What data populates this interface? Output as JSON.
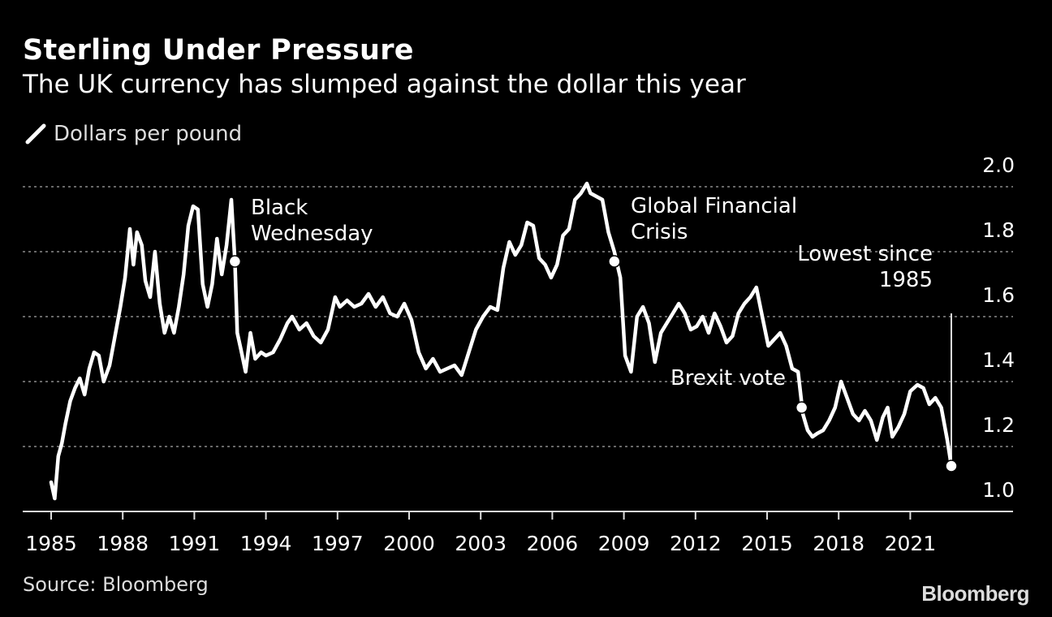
{
  "header": {
    "title": "Sterling Under Pressure",
    "subtitle": "The UK currency has slumped against the dollar this year",
    "legend_label": "Dollars per pound"
  },
  "footer": {
    "source": "Source: Bloomberg",
    "brand": "Bloomberg"
  },
  "colors": {
    "background": "#000000",
    "line": "#ffffff",
    "grid": "#8a8a8a"
  },
  "chart_data": {
    "type": "line",
    "title": "Sterling Under Pressure",
    "subtitle": "The UK currency has slumped against the dollar this year",
    "ylabel": "Dollars per pound",
    "xlim": [
      1984.8,
      2026.0
    ],
    "ylim": [
      1.0,
      2.0
    ],
    "x_ticks": [
      1985,
      1988,
      1991,
      1994,
      1997,
      2000,
      2003,
      2006,
      2009,
      2012,
      2015,
      2018,
      2021
    ],
    "y_ticks": [
      1.0,
      1.2,
      1.4,
      1.6,
      1.8,
      2.0
    ],
    "grid": "horizontal dotted",
    "legend_position": "top-left",
    "series": [
      {
        "name": "Dollars per pound",
        "points": [
          [
            1985.0,
            1.09
          ],
          [
            1985.15,
            1.04
          ],
          [
            1985.3,
            1.17
          ],
          [
            1985.45,
            1.21
          ],
          [
            1985.6,
            1.27
          ],
          [
            1985.8,
            1.34
          ],
          [
            1986.0,
            1.38
          ],
          [
            1986.2,
            1.41
          ],
          [
            1986.4,
            1.36
          ],
          [
            1986.6,
            1.44
          ],
          [
            1986.8,
            1.49
          ],
          [
            1987.0,
            1.48
          ],
          [
            1987.2,
            1.4
          ],
          [
            1987.45,
            1.45
          ],
          [
            1987.7,
            1.55
          ],
          [
            1987.9,
            1.63
          ],
          [
            1988.1,
            1.72
          ],
          [
            1988.3,
            1.87
          ],
          [
            1988.45,
            1.76
          ],
          [
            1988.6,
            1.86
          ],
          [
            1988.8,
            1.82
          ],
          [
            1988.95,
            1.71
          ],
          [
            1989.15,
            1.66
          ],
          [
            1989.35,
            1.8
          ],
          [
            1989.55,
            1.64
          ],
          [
            1989.75,
            1.55
          ],
          [
            1989.95,
            1.6
          ],
          [
            1990.15,
            1.55
          ],
          [
            1990.35,
            1.63
          ],
          [
            1990.55,
            1.73
          ],
          [
            1990.75,
            1.88
          ],
          [
            1990.95,
            1.94
          ],
          [
            1991.15,
            1.93
          ],
          [
            1991.35,
            1.7
          ],
          [
            1991.55,
            1.63
          ],
          [
            1991.75,
            1.7
          ],
          [
            1991.95,
            1.84
          ],
          [
            1992.15,
            1.73
          ],
          [
            1992.35,
            1.82
          ],
          [
            1992.55,
            1.96
          ],
          [
            1992.7,
            1.77
          ],
          [
            1992.8,
            1.55
          ],
          [
            1992.95,
            1.5
          ],
          [
            1993.15,
            1.43
          ],
          [
            1993.35,
            1.55
          ],
          [
            1993.55,
            1.47
          ],
          [
            1993.8,
            1.49
          ],
          [
            1994.0,
            1.48
          ],
          [
            1994.3,
            1.49
          ],
          [
            1994.6,
            1.53
          ],
          [
            1994.9,
            1.58
          ],
          [
            1995.1,
            1.6
          ],
          [
            1995.4,
            1.56
          ],
          [
            1995.7,
            1.58
          ],
          [
            1996.0,
            1.54
          ],
          [
            1996.3,
            1.52
          ],
          [
            1996.6,
            1.56
          ],
          [
            1996.9,
            1.66
          ],
          [
            1997.1,
            1.63
          ],
          [
            1997.4,
            1.65
          ],
          [
            1997.7,
            1.63
          ],
          [
            1998.0,
            1.64
          ],
          [
            1998.3,
            1.67
          ],
          [
            1998.6,
            1.63
          ],
          [
            1998.9,
            1.66
          ],
          [
            1999.2,
            1.61
          ],
          [
            1999.5,
            1.6
          ],
          [
            1999.8,
            1.64
          ],
          [
            2000.1,
            1.59
          ],
          [
            2000.4,
            1.49
          ],
          [
            2000.7,
            1.44
          ],
          [
            2001.0,
            1.47
          ],
          [
            2001.3,
            1.43
          ],
          [
            2001.6,
            1.44
          ],
          [
            2001.9,
            1.45
          ],
          [
            2002.2,
            1.42
          ],
          [
            2002.5,
            1.49
          ],
          [
            2002.8,
            1.56
          ],
          [
            2003.1,
            1.6
          ],
          [
            2003.4,
            1.63
          ],
          [
            2003.7,
            1.62
          ],
          [
            2003.95,
            1.75
          ],
          [
            2004.2,
            1.83
          ],
          [
            2004.45,
            1.79
          ],
          [
            2004.7,
            1.82
          ],
          [
            2004.95,
            1.89
          ],
          [
            2005.2,
            1.88
          ],
          [
            2005.45,
            1.78
          ],
          [
            2005.7,
            1.76
          ],
          [
            2005.95,
            1.72
          ],
          [
            2006.2,
            1.76
          ],
          [
            2006.45,
            1.85
          ],
          [
            2006.7,
            1.87
          ],
          [
            2006.95,
            1.96
          ],
          [
            2007.2,
            1.98
          ],
          [
            2007.45,
            2.01
          ],
          [
            2007.6,
            1.98
          ],
          [
            2007.85,
            1.97
          ],
          [
            2008.1,
            1.96
          ],
          [
            2008.35,
            1.86
          ],
          [
            2008.6,
            1.8
          ],
          [
            2008.85,
            1.72
          ],
          [
            2009.05,
            1.48
          ],
          [
            2009.3,
            1.43
          ],
          [
            2009.55,
            1.6
          ],
          [
            2009.8,
            1.63
          ],
          [
            2010.05,
            1.58
          ],
          [
            2010.3,
            1.46
          ],
          [
            2010.55,
            1.55
          ],
          [
            2010.8,
            1.58
          ],
          [
            2011.05,
            1.61
          ],
          [
            2011.3,
            1.64
          ],
          [
            2011.55,
            1.61
          ],
          [
            2011.8,
            1.56
          ],
          [
            2012.05,
            1.57
          ],
          [
            2012.3,
            1.6
          ],
          [
            2012.55,
            1.55
          ],
          [
            2012.8,
            1.61
          ],
          [
            2013.05,
            1.57
          ],
          [
            2013.3,
            1.52
          ],
          [
            2013.55,
            1.54
          ],
          [
            2013.8,
            1.61
          ],
          [
            2014.05,
            1.64
          ],
          [
            2014.3,
            1.66
          ],
          [
            2014.55,
            1.69
          ],
          [
            2014.8,
            1.6
          ],
          [
            2015.05,
            1.51
          ],
          [
            2015.3,
            1.53
          ],
          [
            2015.55,
            1.55
          ],
          [
            2015.8,
            1.51
          ],
          [
            2016.05,
            1.44
          ],
          [
            2016.3,
            1.43
          ],
          [
            2016.5,
            1.3
          ],
          [
            2016.7,
            1.25
          ],
          [
            2016.9,
            1.23
          ],
          [
            2017.1,
            1.24
          ],
          [
            2017.35,
            1.25
          ],
          [
            2017.6,
            1.28
          ],
          [
            2017.85,
            1.32
          ],
          [
            2018.1,
            1.4
          ],
          [
            2018.35,
            1.35
          ],
          [
            2018.6,
            1.3
          ],
          [
            2018.85,
            1.28
          ],
          [
            2019.1,
            1.31
          ],
          [
            2019.35,
            1.28
          ],
          [
            2019.6,
            1.22
          ],
          [
            2019.85,
            1.29
          ],
          [
            2020.05,
            1.32
          ],
          [
            2020.25,
            1.23
          ],
          [
            2020.5,
            1.26
          ],
          [
            2020.75,
            1.3
          ],
          [
            2021.0,
            1.37
          ],
          [
            2021.3,
            1.39
          ],
          [
            2021.55,
            1.38
          ],
          [
            2021.8,
            1.33
          ],
          [
            2022.05,
            1.35
          ],
          [
            2022.3,
            1.32
          ],
          [
            2022.55,
            1.22
          ],
          [
            2022.72,
            1.14
          ]
        ]
      }
    ],
    "highlights": [
      {
        "label_lines": [
          "Black",
          "Wednesday"
        ],
        "x": 1992.7,
        "y": 1.77
      },
      {
        "label_lines": [
          "Global Financial",
          "Crisis"
        ],
        "x": 2008.6,
        "y": 1.77
      },
      {
        "label_lines": [
          "Brexit vote"
        ],
        "x": 2016.45,
        "y": 1.32
      },
      {
        "label_lines": [
          "Lowest since",
          "1985"
        ],
        "x": 2022.72,
        "y": 1.14
      }
    ]
  }
}
